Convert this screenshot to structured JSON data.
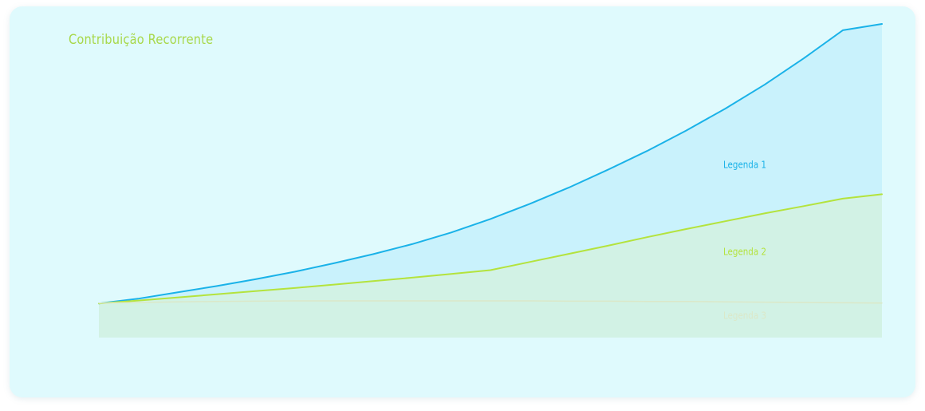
{
  "chart_data": {
    "type": "area",
    "title": "Contribuição Recorrente",
    "xlabel": "",
    "ylabel": "",
    "x": [
      0,
      1,
      2,
      3,
      4,
      5,
      6,
      7,
      8,
      9,
      10,
      11,
      12,
      13,
      14,
      15,
      16,
      17,
      18,
      19,
      20
    ],
    "xlim": [
      0,
      20
    ],
    "ylim": [
      0,
      100
    ],
    "grid": false,
    "legend_placement": "inline-right",
    "series": [
      {
        "name": "Legenda 1",
        "color": "#1ab2e8",
        "fill": "#c9f2fc",
        "values": [
          10.9,
          12.4,
          14.4,
          16.4,
          18.6,
          21.0,
          23.7,
          26.6,
          29.8,
          33.5,
          37.8,
          42.6,
          47.8,
          53.5,
          59.5,
          66.0,
          73.0,
          80.6,
          89.0,
          98.0,
          100
        ]
      },
      {
        "name": "Legenda 2",
        "color": "#b4e33d",
        "fill": "#d2f2e5",
        "values": [
          10.9,
          11.8,
          12.8,
          13.8,
          14.8,
          15.8,
          16.9,
          18.0,
          19.1,
          20.3,
          21.5,
          24.1,
          26.7,
          29.3,
          32.0,
          34.6,
          37.1,
          39.6,
          41.9,
          44.3,
          45.7
        ]
      },
      {
        "name": "Legenda 3",
        "color": "#dbe8c8",
        "fill": "none",
        "values": [
          11.0,
          11.2,
          11.4,
          11.5,
          11.6,
          11.7,
          11.7,
          11.7,
          11.7,
          11.7,
          11.7,
          11.7,
          11.6,
          11.6,
          11.5,
          11.5,
          11.4,
          11.3,
          11.2,
          11.1,
          11.0
        ]
      }
    ]
  },
  "colors": {
    "card_bg": "#dffafd",
    "title": "#a8d84a"
  }
}
